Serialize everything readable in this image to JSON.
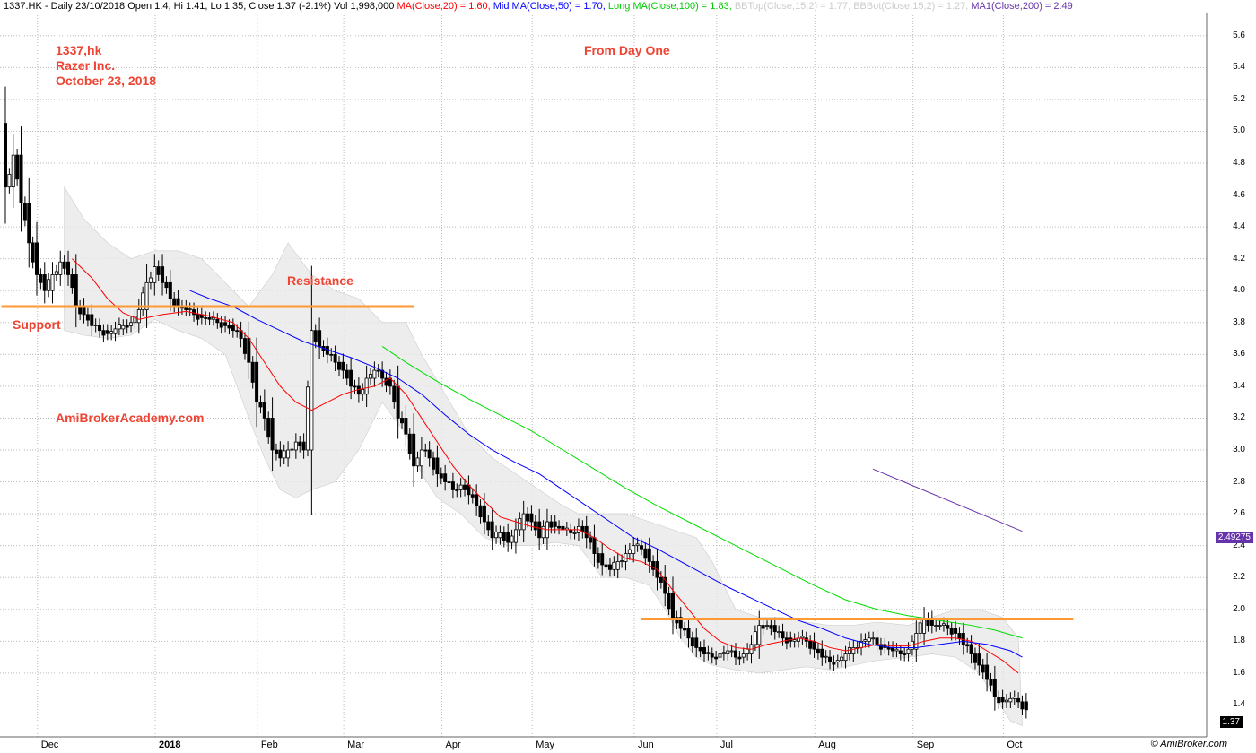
{
  "header": {
    "ticker": "1337.HK",
    "summary": " - Daily 23/10/2018 Open 1.4, Hi 1.41, Lo 1.35, Close 1.37 (-2.1%) Vol 1,998,000 ",
    "ma20": "MA(Close,20) = 1.60, ",
    "mid_ma": "Mid MA(Close,50) = 1.70, ",
    "long_ma": "Long MA(Close,100) = 1.83, ",
    "bbtop": "BBTop(Close,15,2) = 1.77, ",
    "bbbot": "BBBot(Close,15,2) = 1.27, ",
    "ma200": "MA1(Close,200) = 2.49"
  },
  "annotations": {
    "title1": "1337,hk",
    "title2": "Razer Inc.",
    "title3": "October 23, 2018",
    "from_day_one": "From Day One",
    "resistance": "Resistance",
    "support": "Support",
    "site": "AmiBrokerAcademy.com"
  },
  "copyright": "© AmiBroker.com",
  "badges": {
    "ma200_value": "2.49275",
    "close_value": "1.37"
  },
  "colors": {
    "candle": "#000000",
    "ma20": "#ff0000",
    "ma50": "#0000ff",
    "ma100": "#00dd00",
    "ma200": "#6633aa",
    "bb_fill": "#e8e8e8",
    "sr_line": "#ff9933",
    "annotation": "#ee4433",
    "grid": "#bbbbbb"
  },
  "chart_data": {
    "type": "candlestick",
    "ylim": [
      1.2,
      5.7
    ],
    "yticks": [
      "1.4",
      "1.6",
      "1.8",
      "2.0",
      "2.2",
      "2.4",
      "2.6",
      "2.8",
      "3.0",
      "3.2",
      "3.4",
      "3.6",
      "3.8",
      "4.0",
      "4.2",
      "4.4",
      "4.6",
      "4.8",
      "5.0",
      "5.2",
      "5.4",
      "5.6"
    ],
    "xlabels": [
      "Dec",
      "2018",
      "Feb",
      "Mar",
      "Apr",
      "May",
      "Jun",
      "Jul",
      "Aug",
      "Sep",
      "Oct"
    ],
    "x_label_days": [
      10,
      40,
      66,
      88,
      113,
      136,
      162,
      183,
      208,
      233,
      256
    ],
    "total_days": 271,
    "close_series": [
      [
        0,
        4.65
      ],
      [
        2,
        4.85
      ],
      [
        4,
        4.55
      ],
      [
        6,
        4.3
      ],
      [
        8,
        4.1
      ],
      [
        10,
        4.0
      ],
      [
        12,
        4.1
      ],
      [
        14,
        4.18
      ],
      [
        16,
        4.1
      ],
      [
        18,
        3.9
      ],
      [
        20,
        3.85
      ],
      [
        22,
        3.78
      ],
      [
        24,
        3.75
      ],
      [
        26,
        3.73
      ],
      [
        28,
        3.76
      ],
      [
        30,
        3.78
      ],
      [
        32,
        3.8
      ],
      [
        34,
        3.88
      ],
      [
        36,
        4.05
      ],
      [
        38,
        4.15
      ],
      [
        40,
        4.05
      ],
      [
        42,
        3.95
      ],
      [
        44,
        3.9
      ],
      [
        46,
        3.88
      ],
      [
        48,
        3.85
      ],
      [
        50,
        3.83
      ],
      [
        52,
        3.82
      ],
      [
        54,
        3.8
      ],
      [
        56,
        3.78
      ],
      [
        58,
        3.75
      ],
      [
        60,
        3.7
      ],
      [
        62,
        3.55
      ],
      [
        64,
        3.3
      ],
      [
        66,
        3.2
      ],
      [
        68,
        3.0
      ],
      [
        70,
        2.95
      ],
      [
        72,
        3.0
      ],
      [
        74,
        3.05
      ],
      [
        76,
        3.0
      ],
      [
        78,
        3.75
      ],
      [
        80,
        3.65
      ],
      [
        82,
        3.6
      ],
      [
        84,
        3.55
      ],
      [
        86,
        3.5
      ],
      [
        88,
        3.4
      ],
      [
        90,
        3.35
      ],
      [
        92,
        3.45
      ],
      [
        94,
        3.5
      ],
      [
        96,
        3.45
      ],
      [
        98,
        3.4
      ],
      [
        100,
        3.2
      ],
      [
        102,
        3.1
      ],
      [
        104,
        2.9
      ],
      [
        106,
        3.0
      ],
      [
        108,
        2.95
      ],
      [
        110,
        2.85
      ],
      [
        112,
        2.8
      ],
      [
        114,
        2.75
      ],
      [
        116,
        2.78
      ],
      [
        118,
        2.72
      ],
      [
        120,
        2.65
      ],
      [
        122,
        2.55
      ],
      [
        124,
        2.45
      ],
      [
        126,
        2.48
      ],
      [
        128,
        2.42
      ],
      [
        130,
        2.5
      ],
      [
        132,
        2.6
      ],
      [
        134,
        2.55
      ],
      [
        136,
        2.45
      ],
      [
        138,
        2.55
      ],
      [
        140,
        2.52
      ],
      [
        142,
        2.5
      ],
      [
        144,
        2.48
      ],
      [
        146,
        2.52
      ],
      [
        148,
        2.45
      ],
      [
        150,
        2.35
      ],
      [
        152,
        2.28
      ],
      [
        154,
        2.25
      ],
      [
        156,
        2.3
      ],
      [
        158,
        2.35
      ],
      [
        160,
        2.4
      ],
      [
        162,
        2.38
      ],
      [
        164,
        2.3
      ],
      [
        166,
        2.2
      ],
      [
        168,
        2.1
      ],
      [
        170,
        1.95
      ],
      [
        172,
        1.88
      ],
      [
        174,
        1.82
      ],
      [
        176,
        1.76
      ],
      [
        178,
        1.72
      ],
      [
        180,
        1.7
      ],
      [
        182,
        1.72
      ],
      [
        184,
        1.74
      ],
      [
        186,
        1.7
      ],
      [
        188,
        1.72
      ],
      [
        190,
        1.78
      ],
      [
        192,
        1.9
      ],
      [
        194,
        1.9
      ],
      [
        196,
        1.86
      ],
      [
        198,
        1.82
      ],
      [
        200,
        1.8
      ],
      [
        202,
        1.82
      ],
      [
        204,
        1.8
      ],
      [
        206,
        1.75
      ],
      [
        208,
        1.7
      ],
      [
        210,
        1.67
      ],
      [
        212,
        1.68
      ],
      [
        214,
        1.72
      ],
      [
        216,
        1.76
      ],
      [
        218,
        1.8
      ],
      [
        220,
        1.82
      ],
      [
        222,
        1.78
      ],
      [
        224,
        1.76
      ],
      [
        226,
        1.74
      ],
      [
        228,
        1.72
      ],
      [
        230,
        1.75
      ],
      [
        232,
        1.85
      ],
      [
        234,
        1.94
      ],
      [
        236,
        1.9
      ],
      [
        238,
        1.9
      ],
      [
        240,
        1.88
      ],
      [
        242,
        1.85
      ],
      [
        244,
        1.78
      ],
      [
        246,
        1.72
      ],
      [
        248,
        1.65
      ],
      [
        250,
        1.56
      ],
      [
        252,
        1.45
      ],
      [
        254,
        1.42
      ],
      [
        256,
        1.44
      ],
      [
        258,
        1.42
      ],
      [
        260,
        1.37
      ]
    ],
    "ma20_series": [
      [
        17,
        4.2
      ],
      [
        22,
        4.08
      ],
      [
        26,
        3.95
      ],
      [
        30,
        3.86
      ],
      [
        34,
        3.82
      ],
      [
        40,
        3.85
      ],
      [
        46,
        3.87
      ],
      [
        52,
        3.84
      ],
      [
        58,
        3.8
      ],
      [
        62,
        3.7
      ],
      [
        66,
        3.55
      ],
      [
        70,
        3.4
      ],
      [
        74,
        3.3
      ],
      [
        78,
        3.25
      ],
      [
        82,
        3.3
      ],
      [
        86,
        3.35
      ],
      [
        90,
        3.38
      ],
      [
        94,
        3.4
      ],
      [
        98,
        3.45
      ],
      [
        102,
        3.35
      ],
      [
        106,
        3.2
      ],
      [
        110,
        3.05
      ],
      [
        114,
        2.9
      ],
      [
        118,
        2.78
      ],
      [
        122,
        2.68
      ],
      [
        126,
        2.58
      ],
      [
        130,
        2.55
      ],
      [
        134,
        2.52
      ],
      [
        138,
        2.5
      ],
      [
        142,
        2.5
      ],
      [
        146,
        2.5
      ],
      [
        150,
        2.45
      ],
      [
        154,
        2.38
      ],
      [
        158,
        2.32
      ],
      [
        162,
        2.3
      ],
      [
        166,
        2.25
      ],
      [
        170,
        2.12
      ],
      [
        174,
        2.0
      ],
      [
        178,
        1.88
      ],
      [
        182,
        1.8
      ],
      [
        186,
        1.76
      ],
      [
        190,
        1.75
      ],
      [
        194,
        1.78
      ],
      [
        198,
        1.8
      ],
      [
        202,
        1.82
      ],
      [
        206,
        1.8
      ],
      [
        210,
        1.76
      ],
      [
        214,
        1.74
      ],
      [
        218,
        1.76
      ],
      [
        222,
        1.78
      ],
      [
        226,
        1.77
      ],
      [
        230,
        1.77
      ],
      [
        234,
        1.8
      ],
      [
        238,
        1.82
      ],
      [
        242,
        1.82
      ],
      [
        246,
        1.8
      ],
      [
        250,
        1.74
      ],
      [
        254,
        1.68
      ],
      [
        258,
        1.6
      ]
    ],
    "ma50_series": [
      [
        47,
        4.0
      ],
      [
        52,
        3.95
      ],
      [
        58,
        3.9
      ],
      [
        64,
        3.82
      ],
      [
        70,
        3.75
      ],
      [
        76,
        3.68
      ],
      [
        82,
        3.63
      ],
      [
        88,
        3.58
      ],
      [
        94,
        3.52
      ],
      [
        100,
        3.45
      ],
      [
        106,
        3.35
      ],
      [
        112,
        3.22
      ],
      [
        118,
        3.1
      ],
      [
        124,
        3.0
      ],
      [
        130,
        2.92
      ],
      [
        136,
        2.85
      ],
      [
        142,
        2.75
      ],
      [
        148,
        2.65
      ],
      [
        154,
        2.55
      ],
      [
        160,
        2.45
      ],
      [
        166,
        2.38
      ],
      [
        172,
        2.3
      ],
      [
        178,
        2.22
      ],
      [
        184,
        2.14
      ],
      [
        190,
        2.07
      ],
      [
        196,
        2.0
      ],
      [
        202,
        1.93
      ],
      [
        208,
        1.88
      ],
      [
        214,
        1.82
      ],
      [
        220,
        1.78
      ],
      [
        226,
        1.76
      ],
      [
        232,
        1.76
      ],
      [
        238,
        1.78
      ],
      [
        244,
        1.8
      ],
      [
        250,
        1.78
      ],
      [
        256,
        1.74
      ],
      [
        259,
        1.7
      ]
    ],
    "ma100_series": [
      [
        96,
        3.65
      ],
      [
        102,
        3.55
      ],
      [
        110,
        3.43
      ],
      [
        118,
        3.32
      ],
      [
        126,
        3.22
      ],
      [
        134,
        3.12
      ],
      [
        142,
        3.0
      ],
      [
        150,
        2.88
      ],
      [
        158,
        2.76
      ],
      [
        166,
        2.65
      ],
      [
        174,
        2.55
      ],
      [
        182,
        2.45
      ],
      [
        190,
        2.35
      ],
      [
        198,
        2.25
      ],
      [
        206,
        2.15
      ],
      [
        214,
        2.06
      ],
      [
        222,
        2.0
      ],
      [
        230,
        1.96
      ],
      [
        238,
        1.93
      ],
      [
        246,
        1.9
      ],
      [
        252,
        1.87
      ],
      [
        259,
        1.82
      ]
    ],
    "ma200_series": [
      [
        221,
        2.88
      ],
      [
        259,
        2.49
      ]
    ],
    "bb_upper": [
      [
        15,
        4.65
      ],
      [
        20,
        4.45
      ],
      [
        26,
        4.3
      ],
      [
        32,
        4.2
      ],
      [
        38,
        4.25
      ],
      [
        44,
        4.25
      ],
      [
        50,
        4.2
      ],
      [
        56,
        4.05
      ],
      [
        62,
        3.9
      ],
      [
        68,
        4.1
      ],
      [
        72,
        4.3
      ],
      [
        78,
        4.1
      ],
      [
        84,
        4.0
      ],
      [
        90,
        3.95
      ],
      [
        96,
        3.8
      ],
      [
        102,
        3.8
      ],
      [
        106,
        3.6
      ],
      [
        112,
        3.35
      ],
      [
        118,
        3.1
      ],
      [
        124,
        2.95
      ],
      [
        130,
        2.85
      ],
      [
        136,
        2.75
      ],
      [
        142,
        2.65
      ],
      [
        146,
        2.6
      ],
      [
        152,
        2.6
      ],
      [
        158,
        2.6
      ],
      [
        164,
        2.55
      ],
      [
        170,
        2.5
      ],
      [
        176,
        2.45
      ],
      [
        180,
        2.3
      ],
      [
        186,
        2.0
      ],
      [
        192,
        1.95
      ],
      [
        198,
        1.95
      ],
      [
        204,
        1.92
      ],
      [
        210,
        1.9
      ],
      [
        216,
        1.9
      ],
      [
        222,
        1.92
      ],
      [
        230,
        1.9
      ],
      [
        236,
        1.95
      ],
      [
        242,
        2.0
      ],
      [
        248,
        2.0
      ],
      [
        254,
        1.95
      ],
      [
        258,
        1.82
      ]
    ],
    "bb_lower": [
      [
        15,
        3.75
      ],
      [
        20,
        3.72
      ],
      [
        26,
        3.7
      ],
      [
        32,
        3.72
      ],
      [
        38,
        3.82
      ],
      [
        44,
        3.75
      ],
      [
        50,
        3.7
      ],
      [
        56,
        3.6
      ],
      [
        62,
        3.2
      ],
      [
        66,
        2.95
      ],
      [
        70,
        2.75
      ],
      [
        74,
        2.7
      ],
      [
        78,
        2.75
      ],
      [
        84,
        2.8
      ],
      [
        90,
        3.0
      ],
      [
        96,
        3.3
      ],
      [
        102,
        3.1
      ],
      [
        106,
        2.85
      ],
      [
        110,
        2.7
      ],
      [
        116,
        2.6
      ],
      [
        122,
        2.45
      ],
      [
        128,
        2.4
      ],
      [
        134,
        2.4
      ],
      [
        140,
        2.42
      ],
      [
        146,
        2.4
      ],
      [
        152,
        2.2
      ],
      [
        158,
        2.2
      ],
      [
        164,
        2.15
      ],
      [
        168,
        2.0
      ],
      [
        172,
        1.82
      ],
      [
        176,
        1.7
      ],
      [
        180,
        1.65
      ],
      [
        186,
        1.62
      ],
      [
        192,
        1.6
      ],
      [
        198,
        1.62
      ],
      [
        204,
        1.64
      ],
      [
        210,
        1.62
      ],
      [
        216,
        1.65
      ],
      [
        222,
        1.68
      ],
      [
        230,
        1.7
      ],
      [
        236,
        1.72
      ],
      [
        242,
        1.7
      ],
      [
        248,
        1.6
      ],
      [
        252,
        1.45
      ],
      [
        256,
        1.3
      ],
      [
        259,
        1.27
      ]
    ],
    "support_resistance": [
      {
        "y": 3.9,
        "x0": -1,
        "x1": 104
      },
      {
        "y": 1.94,
        "x0": 162,
        "x1": 272
      }
    ]
  }
}
